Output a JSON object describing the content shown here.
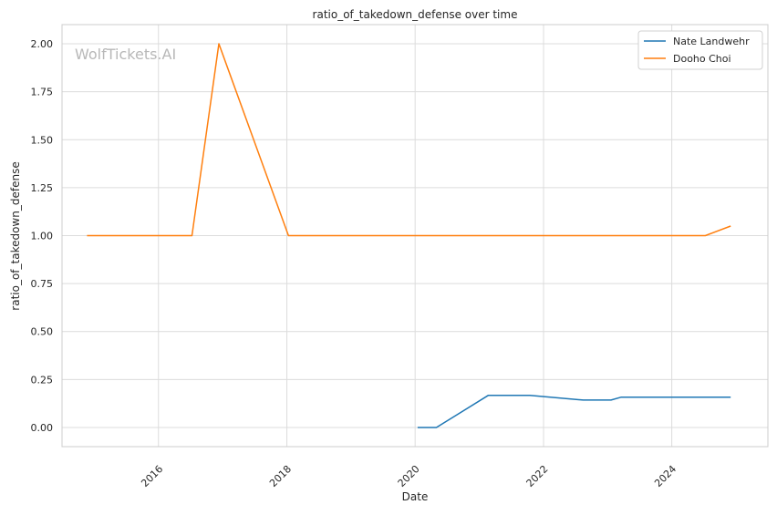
{
  "chart_data": {
    "type": "line",
    "title": "ratio_of_takedown_defense over time",
    "xlabel": "Date",
    "ylabel": "ratio_of_takedown_defense",
    "watermark": "WolfTickets.AI",
    "xlim": [
      "2014-07-01",
      "2025-07-01"
    ],
    "ylim": [
      -0.1,
      2.1
    ],
    "x_ticks": [
      "2016-01-01",
      "2018-01-01",
      "2020-01-01",
      "2022-01-01",
      "2024-01-01"
    ],
    "x_tick_labels": [
      "2016",
      "2018",
      "2020",
      "2022",
      "2024"
    ],
    "y_ticks": [
      0,
      0.25,
      0.5,
      0.75,
      1,
      1.25,
      1.5,
      1.75,
      2
    ],
    "y_tick_labels": [
      "0.00",
      "0.25",
      "0.50",
      "0.75",
      "1.00",
      "1.25",
      "1.50",
      "1.75",
      "2.00"
    ],
    "grid": true,
    "legend_position": "top-right",
    "series": [
      {
        "name": "Nate Landwehr",
        "color": "#1f77b4",
        "points": [
          {
            "x": "2020-01-15",
            "y": 0.0
          },
          {
            "x": "2020-05-01",
            "y": 0.0
          },
          {
            "x": "2021-02-20",
            "y": 0.167
          },
          {
            "x": "2021-10-15",
            "y": 0.167
          },
          {
            "x": "2022-08-15",
            "y": 0.143
          },
          {
            "x": "2023-01-20",
            "y": 0.143
          },
          {
            "x": "2023-03-20",
            "y": 0.158
          },
          {
            "x": "2024-12-01",
            "y": 0.158
          }
        ]
      },
      {
        "name": "Dooho Choi",
        "color": "#ff7f0e",
        "points": [
          {
            "x": "2014-11-20",
            "y": 1.0
          },
          {
            "x": "2016-07-10",
            "y": 1.0
          },
          {
            "x": "2016-12-10",
            "y": 2.0
          },
          {
            "x": "2018-01-10",
            "y": 1.0
          },
          {
            "x": "2024-07-10",
            "y": 1.0
          },
          {
            "x": "2024-12-01",
            "y": 1.05
          }
        ]
      }
    ]
  }
}
